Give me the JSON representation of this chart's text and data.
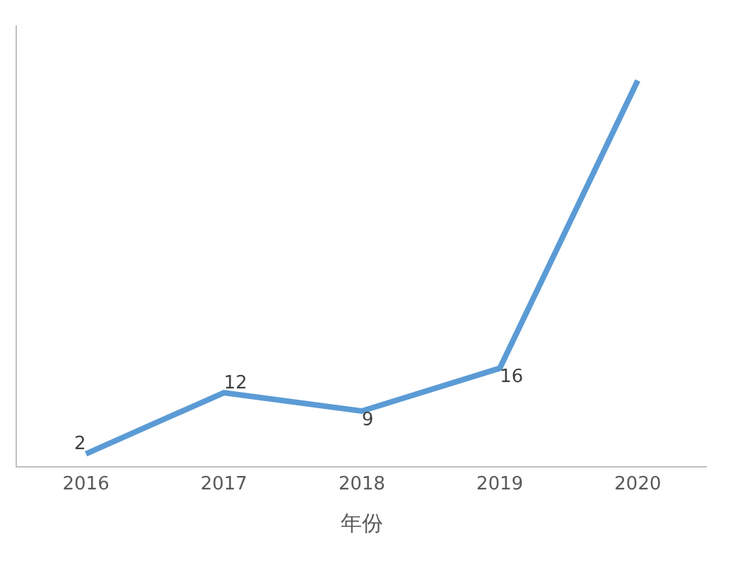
{
  "chart_data": {
    "type": "line",
    "xlabel": "年份",
    "categories": [
      "2016",
      "2017",
      "2018",
      "2019",
      "2020"
    ],
    "series": [
      {
        "color": "#5b9bd5",
        "values": [
          2,
          12,
          9,
          16,
          63
        ],
        "value_labels": [
          "2",
          "12",
          "9",
          "16",
          null
        ]
      }
    ],
    "ylim": [
      0,
      72
    ],
    "tick_labels": "x",
    "legend": false,
    "marker": "none",
    "line_style": "solid"
  }
}
